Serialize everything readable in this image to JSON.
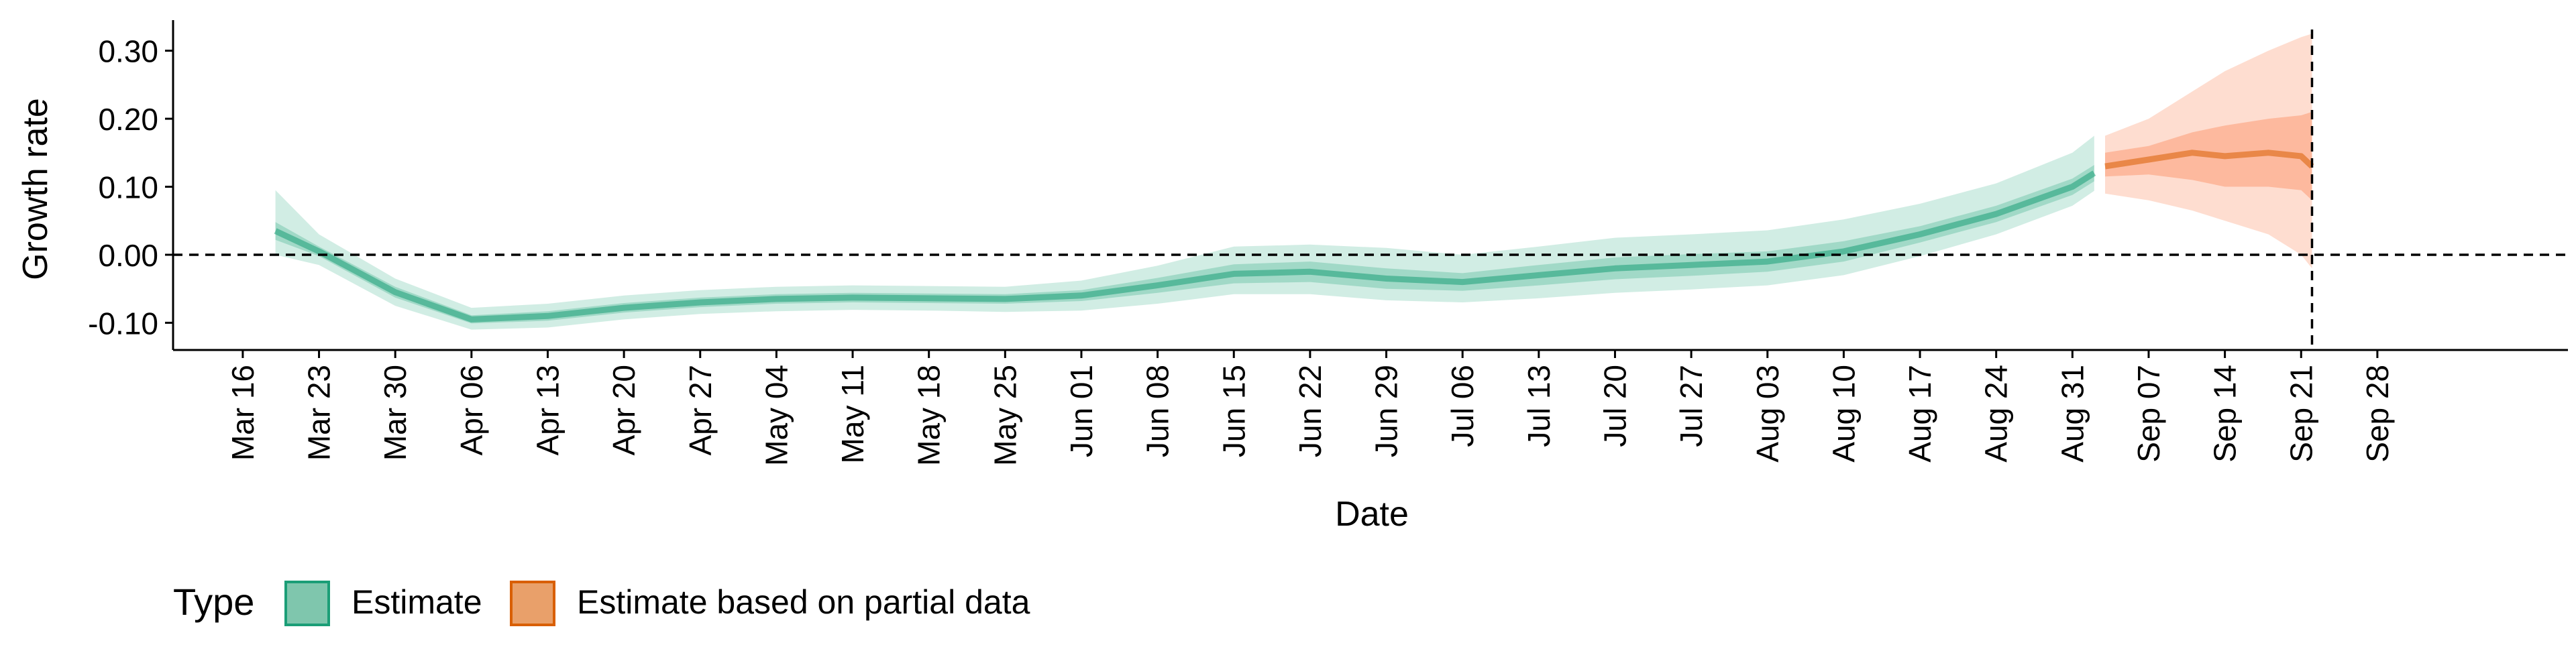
{
  "chart_data": {
    "type": "area",
    "title": "",
    "xlabel": "Date",
    "ylabel": "Growth rate",
    "y_ticks": [
      "-0.10",
      "0.00",
      "0.10",
      "0.20",
      "0.30"
    ],
    "y_tick_values": [
      -0.1,
      0.0,
      0.1,
      0.2,
      0.3
    ],
    "ylim": [
      -0.14,
      0.345
    ],
    "x_ticks": [
      "Mar 16",
      "Mar 23",
      "Mar 30",
      "Apr 06",
      "Apr 13",
      "Apr 20",
      "Apr 27",
      "May 04",
      "May 11",
      "May 18",
      "May 25",
      "Jun 01",
      "Jun 08",
      "Jun 15",
      "Jun 22",
      "Jun 29",
      "Jul 06",
      "Jul 13",
      "Jul 20",
      "Jul 27",
      "Aug 03",
      "Aug 10",
      "Aug 17",
      "Aug 24",
      "Aug 31",
      "Sep 07",
      "Sep 14",
      "Sep 21",
      "Sep 28"
    ],
    "x_range_days_since_mar16": [
      -6.4,
      213.5
    ],
    "grid": false,
    "reference_lines": {
      "horizontal_y": 0.0,
      "vertical_date": "Sep 22"
    },
    "legend": {
      "position": "bottom-left",
      "title": "Type",
      "items": [
        {
          "label": "Estimate",
          "color": "#1b9e77"
        },
        {
          "label": "Estimate based on partial data",
          "color": "#d95f02"
        }
      ]
    },
    "series": [
      {
        "name": "Estimate",
        "color": "#1b9e77",
        "fill_color": "#66c2a5",
        "dates": [
          "Mar 19",
          "Mar 23",
          "Mar 30",
          "Apr 06",
          "Apr 13",
          "Apr 20",
          "Apr 27",
          "May 04",
          "May 11",
          "May 18",
          "May 25",
          "Jun 01",
          "Jun 08",
          "Jun 15",
          "Jun 22",
          "Jun 29",
          "Jul 06",
          "Jul 13",
          "Jul 20",
          "Jul 27",
          "Aug 03",
          "Aug 10",
          "Aug 17",
          "Aug 24",
          "Aug 31",
          "Sep 02"
        ],
        "median": [
          0.035,
          0.005,
          -0.055,
          -0.095,
          -0.09,
          -0.078,
          -0.07,
          -0.065,
          -0.063,
          -0.064,
          -0.065,
          -0.06,
          -0.045,
          -0.028,
          -0.025,
          -0.035,
          -0.04,
          -0.03,
          -0.02,
          -0.015,
          -0.01,
          0.005,
          0.03,
          0.06,
          0.1,
          0.12
        ],
        "inner_low": [
          0.022,
          -0.002,
          -0.063,
          -0.101,
          -0.097,
          -0.085,
          -0.077,
          -0.072,
          -0.07,
          -0.071,
          -0.072,
          -0.068,
          -0.056,
          -0.042,
          -0.04,
          -0.05,
          -0.053,
          -0.045,
          -0.036,
          -0.031,
          -0.025,
          -0.01,
          0.018,
          0.048,
          0.088,
          0.108
        ],
        "inner_high": [
          0.048,
          0.012,
          -0.047,
          -0.089,
          -0.083,
          -0.071,
          -0.063,
          -0.058,
          -0.056,
          -0.057,
          -0.058,
          -0.052,
          -0.034,
          -0.014,
          -0.01,
          -0.02,
          -0.027,
          -0.015,
          -0.004,
          0.001,
          0.005,
          0.02,
          0.042,
          0.072,
          0.112,
          0.132
        ],
        "outer_low": [
          0.0,
          -0.015,
          -0.075,
          -0.11,
          -0.107,
          -0.095,
          -0.087,
          -0.083,
          -0.081,
          -0.082,
          -0.084,
          -0.082,
          -0.072,
          -0.058,
          -0.058,
          -0.067,
          -0.07,
          -0.064,
          -0.056,
          -0.051,
          -0.045,
          -0.03,
          -0.002,
          0.03,
          0.072,
          0.094
        ],
        "outer_high": [
          0.095,
          0.03,
          -0.035,
          -0.078,
          -0.072,
          -0.06,
          -0.052,
          -0.047,
          -0.045,
          -0.046,
          -0.047,
          -0.038,
          -0.016,
          0.012,
          0.015,
          0.01,
          0.0,
          0.012,
          0.025,
          0.03,
          0.036,
          0.052,
          0.075,
          0.105,
          0.15,
          0.175
        ]
      },
      {
        "name": "Estimate based on partial data",
        "color": "#d95f02",
        "fill_color": "#fc8d62",
        "dates": [
          "Sep 03",
          "Sep 07",
          "Sep 11",
          "Sep 14",
          "Sep 18",
          "Sep 21",
          "Sep 22"
        ],
        "median": [
          0.13,
          0.14,
          0.15,
          0.145,
          0.15,
          0.145,
          0.13
        ],
        "inner_low": [
          0.115,
          0.118,
          0.11,
          0.1,
          0.1,
          0.095,
          0.08
        ],
        "inner_high": [
          0.15,
          0.16,
          0.18,
          0.19,
          0.2,
          0.205,
          0.21
        ],
        "outer_low": [
          0.09,
          0.08,
          0.065,
          0.05,
          0.03,
          0.0,
          -0.02
        ],
        "outer_high": [
          0.175,
          0.2,
          0.24,
          0.27,
          0.3,
          0.32,
          0.325
        ]
      }
    ]
  }
}
